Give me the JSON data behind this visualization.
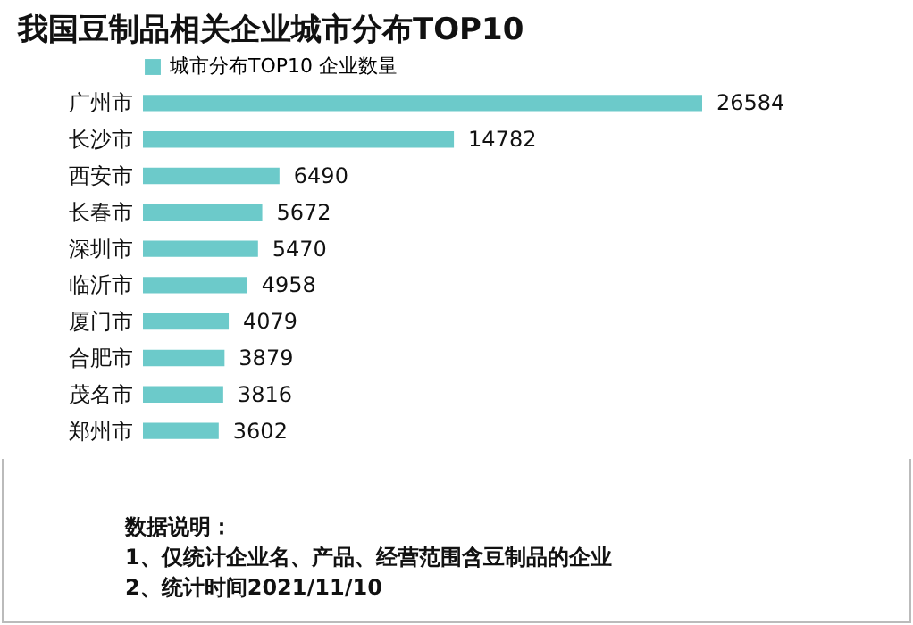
{
  "chart_data": {
    "type": "bar",
    "orientation": "horizontal",
    "title": "我国豆制品相关企业城市分布TOP10",
    "categories": [
      "广州市",
      "长沙市",
      "西安市",
      "长春市",
      "深圳市",
      "临沂市",
      "厦门市",
      "合肥市",
      "茂名市",
      "郑州市"
    ],
    "series": [
      {
        "name": "城市分布TOP10 企业数量",
        "color": "#6ccaca",
        "values": [
          26584,
          14782,
          6490,
          5672,
          5470,
          4958,
          4079,
          3879,
          3816,
          3602
        ]
      }
    ],
    "data_labels": true,
    "legend": "top left",
    "annotations": [
      "数据说明：",
      "1、仅统计企业名、产品、经营范围含豆制品的企业",
      "2、统计时间2021/11/10"
    ]
  }
}
